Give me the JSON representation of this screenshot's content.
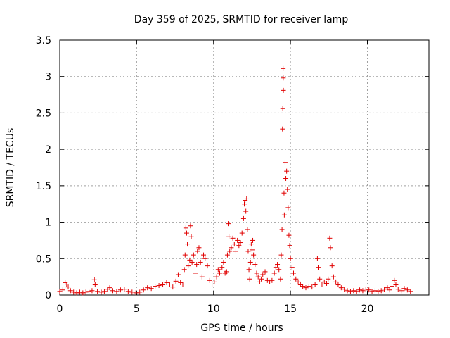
{
  "chart_data": {
    "type": "scatter",
    "title": "Day 359 of 2025, SRMTID for receiver lamp",
    "xlabel": "GPS time / hours",
    "ylabel": "SRMTID / TECUs",
    "xlim": [
      0,
      24
    ],
    "ylim": [
      0,
      3.5
    ],
    "xticks": [
      0,
      5,
      10,
      15,
      20
    ],
    "xtick_labels": [
      "0",
      "5",
      "10",
      "15",
      "20"
    ],
    "yticks": [
      0,
      0.5,
      1,
      1.5,
      2,
      2.5,
      3,
      3.5
    ],
    "ytick_labels": [
      "0",
      "0.5",
      "1",
      "1.5",
      "2",
      "2.5",
      "3",
      "3.5"
    ],
    "grid": true,
    "marker": "+",
    "color": "#e00000",
    "series": [
      {
        "name": "SRMTID",
        "points": [
          [
            0.0,
            0.05
          ],
          [
            0.2,
            0.07
          ],
          [
            0.35,
            0.17
          ],
          [
            0.45,
            0.15
          ],
          [
            0.55,
            0.11
          ],
          [
            0.7,
            0.06
          ],
          [
            0.9,
            0.04
          ],
          [
            1.1,
            0.03
          ],
          [
            1.3,
            0.04
          ],
          [
            1.5,
            0.03
          ],
          [
            1.7,
            0.04
          ],
          [
            1.9,
            0.05
          ],
          [
            2.1,
            0.06
          ],
          [
            2.25,
            0.21
          ],
          [
            2.3,
            0.14
          ],
          [
            2.45,
            0.05
          ],
          [
            2.7,
            0.04
          ],
          [
            2.9,
            0.05
          ],
          [
            3.1,
            0.08
          ],
          [
            3.25,
            0.1
          ],
          [
            3.45,
            0.06
          ],
          [
            3.7,
            0.05
          ],
          [
            3.95,
            0.07
          ],
          [
            4.2,
            0.08
          ],
          [
            4.45,
            0.05
          ],
          [
            4.7,
            0.04
          ],
          [
            4.95,
            0.03
          ],
          [
            5.2,
            0.04
          ],
          [
            5.45,
            0.07
          ],
          [
            5.7,
            0.1
          ],
          [
            5.95,
            0.09
          ],
          [
            6.2,
            0.12
          ],
          [
            6.45,
            0.13
          ],
          [
            6.7,
            0.14
          ],
          [
            6.95,
            0.17
          ],
          [
            7.15,
            0.15
          ],
          [
            7.35,
            0.11
          ],
          [
            7.55,
            0.19
          ],
          [
            7.7,
            0.28
          ],
          [
            7.85,
            0.17
          ],
          [
            8.0,
            0.15
          ],
          [
            8.1,
            0.35
          ],
          [
            8.15,
            0.55
          ],
          [
            8.2,
            0.92
          ],
          [
            8.25,
            0.85
          ],
          [
            8.3,
            0.7
          ],
          [
            8.35,
            0.4
          ],
          [
            8.45,
            0.48
          ],
          [
            8.5,
            0.95
          ],
          [
            8.55,
            0.8
          ],
          [
            8.6,
            0.45
          ],
          [
            8.7,
            0.55
          ],
          [
            8.8,
            0.3
          ],
          [
            8.9,
            0.42
          ],
          [
            8.95,
            0.6
          ],
          [
            9.05,
            0.65
          ],
          [
            9.15,
            0.45
          ],
          [
            9.25,
            0.25
          ],
          [
            9.35,
            0.55
          ],
          [
            9.45,
            0.5
          ],
          [
            9.6,
            0.4
          ],
          [
            9.75,
            0.2
          ],
          [
            9.9,
            0.15
          ],
          [
            10.05,
            0.18
          ],
          [
            10.2,
            0.25
          ],
          [
            10.3,
            0.35
          ],
          [
            10.4,
            0.3
          ],
          [
            10.55,
            0.38
          ],
          [
            10.65,
            0.45
          ],
          [
            10.75,
            0.3
          ],
          [
            10.85,
            0.32
          ],
          [
            10.9,
            0.55
          ],
          [
            10.95,
            0.98
          ],
          [
            11.0,
            0.8
          ],
          [
            11.05,
            0.6
          ],
          [
            11.15,
            0.65
          ],
          [
            11.25,
            0.78
          ],
          [
            11.35,
            0.7
          ],
          [
            11.45,
            0.6
          ],
          [
            11.55,
            0.75
          ],
          [
            11.65,
            0.68
          ],
          [
            11.75,
            0.72
          ],
          [
            11.85,
            0.85
          ],
          [
            11.95,
            1.05
          ],
          [
            12.0,
            1.25
          ],
          [
            12.05,
            1.3
          ],
          [
            12.1,
            1.15
          ],
          [
            12.15,
            1.32
          ],
          [
            12.2,
            0.9
          ],
          [
            12.25,
            0.6
          ],
          [
            12.3,
            0.35
          ],
          [
            12.35,
            0.22
          ],
          [
            12.4,
            0.45
          ],
          [
            12.45,
            0.7
          ],
          [
            12.5,
            0.62
          ],
          [
            12.55,
            0.75
          ],
          [
            12.6,
            0.55
          ],
          [
            12.7,
            0.42
          ],
          [
            12.8,
            0.3
          ],
          [
            12.9,
            0.25
          ],
          [
            13.0,
            0.18
          ],
          [
            13.1,
            0.22
          ],
          [
            13.2,
            0.28
          ],
          [
            13.35,
            0.32
          ],
          [
            13.5,
            0.2
          ],
          [
            13.65,
            0.18
          ],
          [
            13.8,
            0.2
          ],
          [
            13.95,
            0.3
          ],
          [
            14.05,
            0.38
          ],
          [
            14.15,
            0.42
          ],
          [
            14.25,
            0.35
          ],
          [
            14.35,
            0.22
          ],
          [
            14.4,
            0.55
          ],
          [
            14.45,
            0.9
          ],
          [
            14.48,
            2.28
          ],
          [
            14.5,
            2.56
          ],
          [
            14.52,
            3.11
          ],
          [
            14.53,
            2.98
          ],
          [
            14.54,
            2.81
          ],
          [
            14.58,
            1.4
          ],
          [
            14.6,
            1.1
          ],
          [
            14.65,
            1.82
          ],
          [
            14.7,
            1.6
          ],
          [
            14.75,
            1.7
          ],
          [
            14.8,
            1.45
          ],
          [
            14.85,
            1.2
          ],
          [
            14.9,
            0.82
          ],
          [
            14.95,
            0.68
          ],
          [
            15.0,
            0.5
          ],
          [
            15.1,
            0.38
          ],
          [
            15.2,
            0.3
          ],
          [
            15.35,
            0.22
          ],
          [
            15.5,
            0.18
          ],
          [
            15.65,
            0.14
          ],
          [
            15.8,
            0.12
          ],
          [
            16.0,
            0.1
          ],
          [
            16.2,
            0.12
          ],
          [
            16.4,
            0.11
          ],
          [
            16.6,
            0.14
          ],
          [
            16.75,
            0.5
          ],
          [
            16.8,
            0.38
          ],
          [
            16.9,
            0.22
          ],
          [
            17.05,
            0.15
          ],
          [
            17.2,
            0.18
          ],
          [
            17.35,
            0.16
          ],
          [
            17.45,
            0.22
          ],
          [
            17.55,
            0.78
          ],
          [
            17.6,
            0.65
          ],
          [
            17.7,
            0.4
          ],
          [
            17.8,
            0.25
          ],
          [
            17.95,
            0.18
          ],
          [
            18.1,
            0.14
          ],
          [
            18.3,
            0.1
          ],
          [
            18.5,
            0.08
          ],
          [
            18.7,
            0.06
          ],
          [
            18.9,
            0.05
          ],
          [
            19.1,
            0.06
          ],
          [
            19.3,
            0.05
          ],
          [
            19.5,
            0.07
          ],
          [
            19.7,
            0.06
          ],
          [
            19.9,
            0.08
          ],
          [
            20.1,
            0.07
          ],
          [
            20.3,
            0.05
          ],
          [
            20.5,
            0.06
          ],
          [
            20.7,
            0.05
          ],
          [
            20.9,
            0.06
          ],
          [
            21.1,
            0.08
          ],
          [
            21.3,
            0.1
          ],
          [
            21.45,
            0.07
          ],
          [
            21.6,
            0.12
          ],
          [
            21.75,
            0.2
          ],
          [
            21.85,
            0.14
          ],
          [
            22.0,
            0.08
          ],
          [
            22.2,
            0.06
          ],
          [
            22.4,
            0.09
          ],
          [
            22.6,
            0.07
          ],
          [
            22.8,
            0.05
          ]
        ]
      }
    ]
  }
}
